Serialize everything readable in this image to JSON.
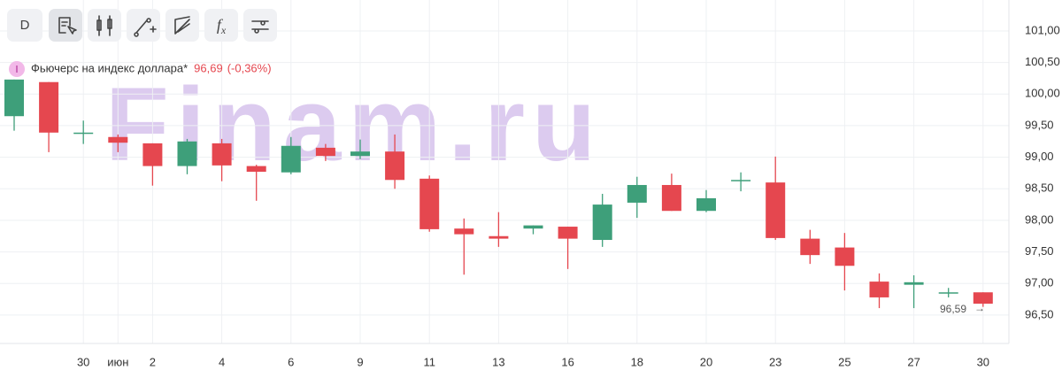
{
  "chart_data": {
    "type": "candlestick",
    "interval": "D",
    "title": "Фьючерс на индекс доллара*",
    "last_value": "96,69",
    "change": "(-0,36%)",
    "price_label": "96,59",
    "watermark": "Finam.ru",
    "up_color": "#3e9f7a",
    "down_color": "#e5474f",
    "categories": [
      null,
      null,
      "30",
      "июн",
      "2",
      null,
      "4",
      null,
      "6",
      null,
      "9",
      null,
      "11",
      null,
      "13",
      null,
      "16",
      null,
      "18",
      null,
      "20",
      null,
      "23",
      null,
      "25",
      null,
      "27",
      null,
      "30"
    ],
    "open": [
      99.65,
      100.19,
      99.39,
      99.32,
      99.22,
      98.86,
      99.22,
      98.86,
      98.76,
      99.15,
      99.02,
      99.09,
      98.66,
      97.87,
      97.75,
      97.87,
      97.9,
      97.69,
      98.28,
      98.56,
      98.15,
      98.64,
      98.6,
      97.71,
      97.57,
      97.03,
      96.98,
      96.86,
      96.86
    ],
    "high": [
      100.23,
      100.19,
      99.58,
      99.36,
      99.22,
      99.29,
      99.29,
      98.88,
      99.32,
      99.21,
      99.28,
      99.36,
      98.71,
      98.03,
      98.13,
      97.92,
      97.9,
      98.42,
      98.69,
      98.74,
      98.48,
      98.76,
      99.01,
      97.85,
      97.8,
      97.16,
      97.13,
      96.93,
      96.86
    ],
    "low": [
      99.42,
      99.08,
      99.21,
      99.08,
      98.55,
      98.73,
      98.62,
      98.31,
      98.73,
      98.94,
      98.97,
      98.5,
      97.82,
      97.14,
      97.58,
      97.78,
      97.23,
      97.58,
      98.04,
      98.15,
      98.13,
      98.46,
      97.69,
      97.31,
      96.89,
      96.61,
      96.61,
      96.78,
      96.63
    ],
    "close": [
      100.23,
      99.39,
      99.39,
      99.23,
      98.86,
      99.25,
      98.87,
      98.77,
      99.18,
      99.02,
      99.09,
      98.64,
      97.86,
      97.78,
      97.71,
      97.92,
      97.71,
      98.25,
      98.56,
      98.15,
      98.35,
      98.64,
      97.72,
      97.45,
      97.28,
      96.78,
      97.02,
      96.86,
      96.68
    ],
    "ylim": [
      96.05,
      101.49
    ],
    "yticks": [
      {
        "value": 96.5,
        "label": "96,50"
      },
      {
        "value": 97,
        "label": "97,00"
      },
      {
        "value": 97.5,
        "label": "97,50"
      },
      {
        "value": 98,
        "label": "98,00"
      },
      {
        "value": 98.5,
        "label": "98,50"
      },
      {
        "value": 99,
        "label": "99,00"
      },
      {
        "value": 99.5,
        "label": "99,50"
      },
      {
        "value": 100,
        "label": "100,00"
      },
      {
        "value": 100.5,
        "label": "100,50"
      },
      {
        "value": 101,
        "label": "101,00"
      }
    ],
    "grid": true
  }
}
